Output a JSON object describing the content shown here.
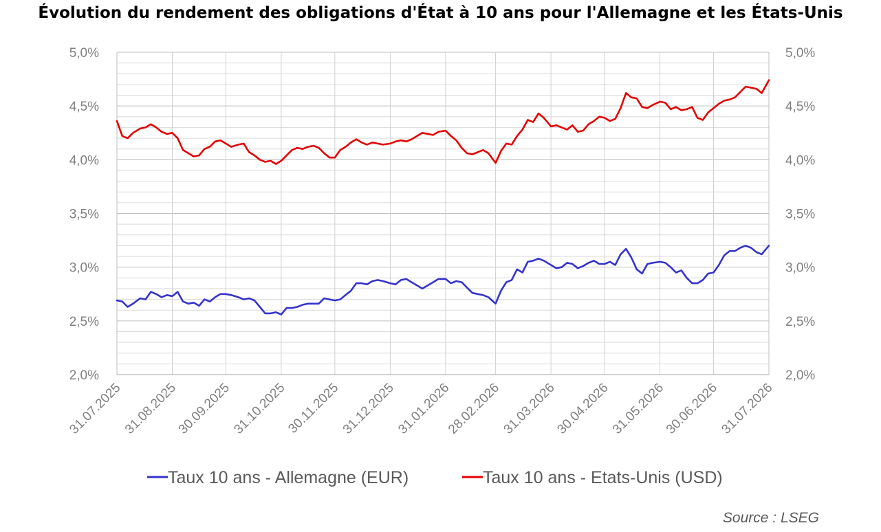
{
  "chart_data": {
    "type": "line",
    "title": "Évolution du rendement des obligations d'État à 10 ans pour l'Allemagne et les États-Unis",
    "source": "Source : LSEG",
    "x_tick_labels": [
      "31.07.2025",
      "31.08.2025",
      "30.09.2025",
      "31.10.2025",
      "30.11.2025",
      "31.12.2025",
      "31.01.2026",
      "28.02.2026",
      "31.03.2026",
      "30.04.2026",
      "31.05.2026",
      "30.06.2026",
      "31.07.2026"
    ],
    "y_tick_labels": [
      "2,0%",
      "2,5%",
      "3,0%",
      "3,5%",
      "4,0%",
      "4,5%",
      "5,0%"
    ],
    "ylim": [
      2.0,
      5.0
    ],
    "y_major_step": 0.5,
    "y_minor_step": 0.1,
    "grid": true,
    "legend_position": "bottom",
    "colors": {
      "germany": "#3333cc",
      "usa": "#e60000",
      "grid": "#d9d9d9",
      "axis": "#bfbfbf"
    },
    "series": [
      {
        "name": "Taux 10 ans - Allemagne (EUR)",
        "color": "#3333cc",
        "points": [
          [
            "31.07.2025",
            2.69
          ],
          [
            "03.08.2025",
            2.68
          ],
          [
            "06.08.2025",
            2.63
          ],
          [
            "09.08.2025",
            2.66
          ],
          [
            "13.08.2025",
            2.71
          ],
          [
            "16.08.2025",
            2.7
          ],
          [
            "19.08.2025",
            2.77
          ],
          [
            "22.08.2025",
            2.75
          ],
          [
            "25.08.2025",
            2.72
          ],
          [
            "28.08.2025",
            2.74
          ],
          [
            "31.08.2025",
            2.73
          ],
          [
            "03.09.2025",
            2.77
          ],
          [
            "06.09.2025",
            2.68
          ],
          [
            "09.09.2025",
            2.66
          ],
          [
            "12.09.2025",
            2.67
          ],
          [
            "15.09.2025",
            2.64
          ],
          [
            "18.09.2025",
            2.7
          ],
          [
            "21.09.2025",
            2.68
          ],
          [
            "24.09.2025",
            2.72
          ],
          [
            "27.09.2025",
            2.75
          ],
          [
            "30.09.2025",
            2.75
          ],
          [
            "03.10.2025",
            2.74
          ],
          [
            "07.10.2025",
            2.72
          ],
          [
            "10.10.2025",
            2.7
          ],
          [
            "13.10.2025",
            2.71
          ],
          [
            "16.10.2025",
            2.69
          ],
          [
            "19.10.2025",
            2.63
          ],
          [
            "22.10.2025",
            2.57
          ],
          [
            "25.10.2025",
            2.57
          ],
          [
            "28.10.2025",
            2.58
          ],
          [
            "31.10.2025",
            2.56
          ],
          [
            "03.11.2025",
            2.62
          ],
          [
            "06.11.2025",
            2.62
          ],
          [
            "09.11.2025",
            2.63
          ],
          [
            "12.11.2025",
            2.65
          ],
          [
            "15.11.2025",
            2.66
          ],
          [
            "18.11.2025",
            2.66
          ],
          [
            "21.11.2025",
            2.66
          ],
          [
            "24.11.2025",
            2.71
          ],
          [
            "27.11.2025",
            2.7
          ],
          [
            "30.11.2025",
            2.69
          ],
          [
            "03.12.2025",
            2.7
          ],
          [
            "06.12.2025",
            2.74
          ],
          [
            "09.12.2025",
            2.78
          ],
          [
            "12.12.2025",
            2.85
          ],
          [
            "15.12.2025",
            2.85
          ],
          [
            "18.12.2025",
            2.84
          ],
          [
            "21.12.2025",
            2.87
          ],
          [
            "24.12.2025",
            2.88
          ],
          [
            "27.12.2025",
            2.87
          ],
          [
            "31.12.2025",
            2.85
          ],
          [
            "03.01.2026",
            2.84
          ],
          [
            "06.01.2026",
            2.88
          ],
          [
            "09.01.2026",
            2.89
          ],
          [
            "12.01.2026",
            2.86
          ],
          [
            "15.01.2026",
            2.83
          ],
          [
            "18.01.2026",
            2.8
          ],
          [
            "21.01.2026",
            2.83
          ],
          [
            "24.01.2026",
            2.86
          ],
          [
            "27.01.2026",
            2.89
          ],
          [
            "31.01.2026",
            2.89
          ],
          [
            "03.02.2026",
            2.85
          ],
          [
            "06.02.2026",
            2.87
          ],
          [
            "09.02.2026",
            2.86
          ],
          [
            "12.02.2026",
            2.81
          ],
          [
            "15.02.2026",
            2.76
          ],
          [
            "18.02.2026",
            2.75
          ],
          [
            "21.02.2026",
            2.74
          ],
          [
            "24.02.2026",
            2.72
          ],
          [
            "28.02.2026",
            2.66
          ],
          [
            "03.03.2026",
            2.78
          ],
          [
            "06.03.2026",
            2.86
          ],
          [
            "09.03.2026",
            2.88
          ],
          [
            "12.03.2026",
            2.98
          ],
          [
            "15.03.2026",
            2.95
          ],
          [
            "18.03.2026",
            3.05
          ],
          [
            "21.03.2026",
            3.06
          ],
          [
            "24.03.2026",
            3.08
          ],
          [
            "27.03.2026",
            3.06
          ],
          [
            "31.03.2026",
            3.02
          ],
          [
            "03.04.2026",
            2.99
          ],
          [
            "06.04.2026",
            3.0
          ],
          [
            "09.04.2026",
            3.04
          ],
          [
            "12.04.2026",
            3.03
          ],
          [
            "15.04.2026",
            2.99
          ],
          [
            "18.04.2026",
            3.01
          ],
          [
            "21.04.2026",
            3.04
          ],
          [
            "24.04.2026",
            3.06
          ],
          [
            "27.04.2026",
            3.03
          ],
          [
            "30.04.2026",
            3.03
          ],
          [
            "03.05.2026",
            3.05
          ],
          [
            "06.05.2026",
            3.02
          ],
          [
            "09.05.2026",
            3.12
          ],
          [
            "12.05.2026",
            3.17
          ],
          [
            "15.05.2026",
            3.09
          ],
          [
            "18.05.2026",
            2.98
          ],
          [
            "21.05.2026",
            2.94
          ],
          [
            "24.05.2026",
            3.03
          ],
          [
            "27.05.2026",
            3.04
          ],
          [
            "31.05.2026",
            3.05
          ],
          [
            "03.06.2026",
            3.04
          ],
          [
            "06.06.2026",
            3.0
          ],
          [
            "09.06.2026",
            2.95
          ],
          [
            "12.06.2026",
            2.97
          ],
          [
            "15.06.2026",
            2.9
          ],
          [
            "18.06.2026",
            2.85
          ],
          [
            "21.06.2026",
            2.85
          ],
          [
            "24.06.2026",
            2.88
          ],
          [
            "27.06.2026",
            2.94
          ],
          [
            "30.06.2026",
            2.95
          ],
          [
            "03.07.2026",
            3.02
          ],
          [
            "06.07.2026",
            3.11
          ],
          [
            "09.07.2026",
            3.15
          ],
          [
            "12.07.2026",
            3.15
          ],
          [
            "15.07.2026",
            3.18
          ],
          [
            "18.07.2026",
            3.2
          ],
          [
            "21.07.2026",
            3.18
          ],
          [
            "24.07.2026",
            3.14
          ],
          [
            "27.07.2026",
            3.12
          ],
          [
            "31.07.2026",
            3.2
          ]
        ]
      },
      {
        "name": "Taux 10 ans - Etats-Unis (USD)",
        "color": "#e60000",
        "points": [
          [
            "31.07.2025",
            4.36
          ],
          [
            "03.08.2025",
            4.22
          ],
          [
            "06.08.2025",
            4.2
          ],
          [
            "09.08.2025",
            4.25
          ],
          [
            "13.08.2025",
            4.29
          ],
          [
            "16.08.2025",
            4.3
          ],
          [
            "19.08.2025",
            4.33
          ],
          [
            "22.08.2025",
            4.3
          ],
          [
            "25.08.2025",
            4.26
          ],
          [
            "28.08.2025",
            4.24
          ],
          [
            "31.08.2025",
            4.25
          ],
          [
            "03.09.2025",
            4.2
          ],
          [
            "06.09.2025",
            4.09
          ],
          [
            "09.09.2025",
            4.06
          ],
          [
            "12.09.2025",
            4.03
          ],
          [
            "15.09.2025",
            4.04
          ],
          [
            "18.09.2025",
            4.1
          ],
          [
            "21.09.2025",
            4.12
          ],
          [
            "24.09.2025",
            4.17
          ],
          [
            "27.09.2025",
            4.18
          ],
          [
            "30.09.2025",
            4.15
          ],
          [
            "03.10.2025",
            4.12
          ],
          [
            "07.10.2025",
            4.14
          ],
          [
            "10.10.2025",
            4.15
          ],
          [
            "13.10.2025",
            4.07
          ],
          [
            "16.10.2025",
            4.04
          ],
          [
            "19.10.2025",
            4.0
          ],
          [
            "22.10.2025",
            3.98
          ],
          [
            "25.10.2025",
            3.99
          ],
          [
            "28.10.2025",
            3.96
          ],
          [
            "31.10.2025",
            3.99
          ],
          [
            "03.11.2025",
            4.04
          ],
          [
            "06.11.2025",
            4.09
          ],
          [
            "09.11.2025",
            4.11
          ],
          [
            "12.11.2025",
            4.1
          ],
          [
            "15.11.2025",
            4.12
          ],
          [
            "18.11.2025",
            4.13
          ],
          [
            "21.11.2025",
            4.11
          ],
          [
            "24.11.2025",
            4.06
          ],
          [
            "27.11.2025",
            4.02
          ],
          [
            "30.11.2025",
            4.02
          ],
          [
            "03.12.2025",
            4.09
          ],
          [
            "06.12.2025",
            4.12
          ],
          [
            "09.12.2025",
            4.16
          ],
          [
            "12.12.2025",
            4.19
          ],
          [
            "15.12.2025",
            4.16
          ],
          [
            "18.12.2025",
            4.14
          ],
          [
            "21.12.2025",
            4.16
          ],
          [
            "24.12.2025",
            4.15
          ],
          [
            "27.12.2025",
            4.14
          ],
          [
            "31.12.2025",
            4.15
          ],
          [
            "03.01.2026",
            4.17
          ],
          [
            "06.01.2026",
            4.18
          ],
          [
            "09.01.2026",
            4.17
          ],
          [
            "12.01.2026",
            4.19
          ],
          [
            "15.01.2026",
            4.22
          ],
          [
            "18.01.2026",
            4.25
          ],
          [
            "21.01.2026",
            4.24
          ],
          [
            "24.01.2026",
            4.23
          ],
          [
            "27.01.2026",
            4.26
          ],
          [
            "31.01.2026",
            4.27
          ],
          [
            "03.02.2026",
            4.22
          ],
          [
            "06.02.2026",
            4.18
          ],
          [
            "09.02.2026",
            4.11
          ],
          [
            "12.02.2026",
            4.06
          ],
          [
            "15.02.2026",
            4.05
          ],
          [
            "18.02.2026",
            4.07
          ],
          [
            "21.02.2026",
            4.09
          ],
          [
            "24.02.2026",
            4.06
          ],
          [
            "28.02.2026",
            3.97
          ],
          [
            "03.03.2026",
            4.08
          ],
          [
            "06.03.2026",
            4.15
          ],
          [
            "09.03.2026",
            4.14
          ],
          [
            "12.03.2026",
            4.22
          ],
          [
            "15.03.2026",
            4.28
          ],
          [
            "18.03.2026",
            4.37
          ],
          [
            "21.03.2026",
            4.35
          ],
          [
            "24.03.2026",
            4.43
          ],
          [
            "27.03.2026",
            4.39
          ],
          [
            "31.03.2026",
            4.31
          ],
          [
            "03.04.2026",
            4.32
          ],
          [
            "06.04.2026",
            4.3
          ],
          [
            "09.04.2026",
            4.28
          ],
          [
            "12.04.2026",
            4.32
          ],
          [
            "15.04.2026",
            4.26
          ],
          [
            "18.04.2026",
            4.27
          ],
          [
            "21.04.2026",
            4.33
          ],
          [
            "24.04.2026",
            4.36
          ],
          [
            "27.04.2026",
            4.4
          ],
          [
            "30.04.2026",
            4.39
          ],
          [
            "03.05.2026",
            4.36
          ],
          [
            "06.05.2026",
            4.38
          ],
          [
            "09.05.2026",
            4.48
          ],
          [
            "12.05.2026",
            4.62
          ],
          [
            "15.05.2026",
            4.58
          ],
          [
            "18.05.2026",
            4.57
          ],
          [
            "21.05.2026",
            4.49
          ],
          [
            "24.05.2026",
            4.48
          ],
          [
            "27.05.2026",
            4.51
          ],
          [
            "31.05.2026",
            4.54
          ],
          [
            "03.06.2026",
            4.53
          ],
          [
            "06.06.2026",
            4.47
          ],
          [
            "09.06.2026",
            4.49
          ],
          [
            "12.06.2026",
            4.46
          ],
          [
            "15.06.2026",
            4.47
          ],
          [
            "18.06.2026",
            4.49
          ],
          [
            "21.06.2026",
            4.39
          ],
          [
            "24.06.2026",
            4.37
          ],
          [
            "27.06.2026",
            4.44
          ],
          [
            "30.06.2026",
            4.48
          ],
          [
            "03.07.2026",
            4.52
          ],
          [
            "06.07.2026",
            4.55
          ],
          [
            "09.07.2026",
            4.56
          ],
          [
            "12.07.2026",
            4.58
          ],
          [
            "15.07.2026",
            4.63
          ],
          [
            "18.07.2026",
            4.68
          ],
          [
            "21.07.2026",
            4.67
          ],
          [
            "24.07.2026",
            4.66
          ],
          [
            "27.07.2026",
            4.62
          ],
          [
            "31.07.2026",
            4.74
          ]
        ]
      }
    ]
  }
}
